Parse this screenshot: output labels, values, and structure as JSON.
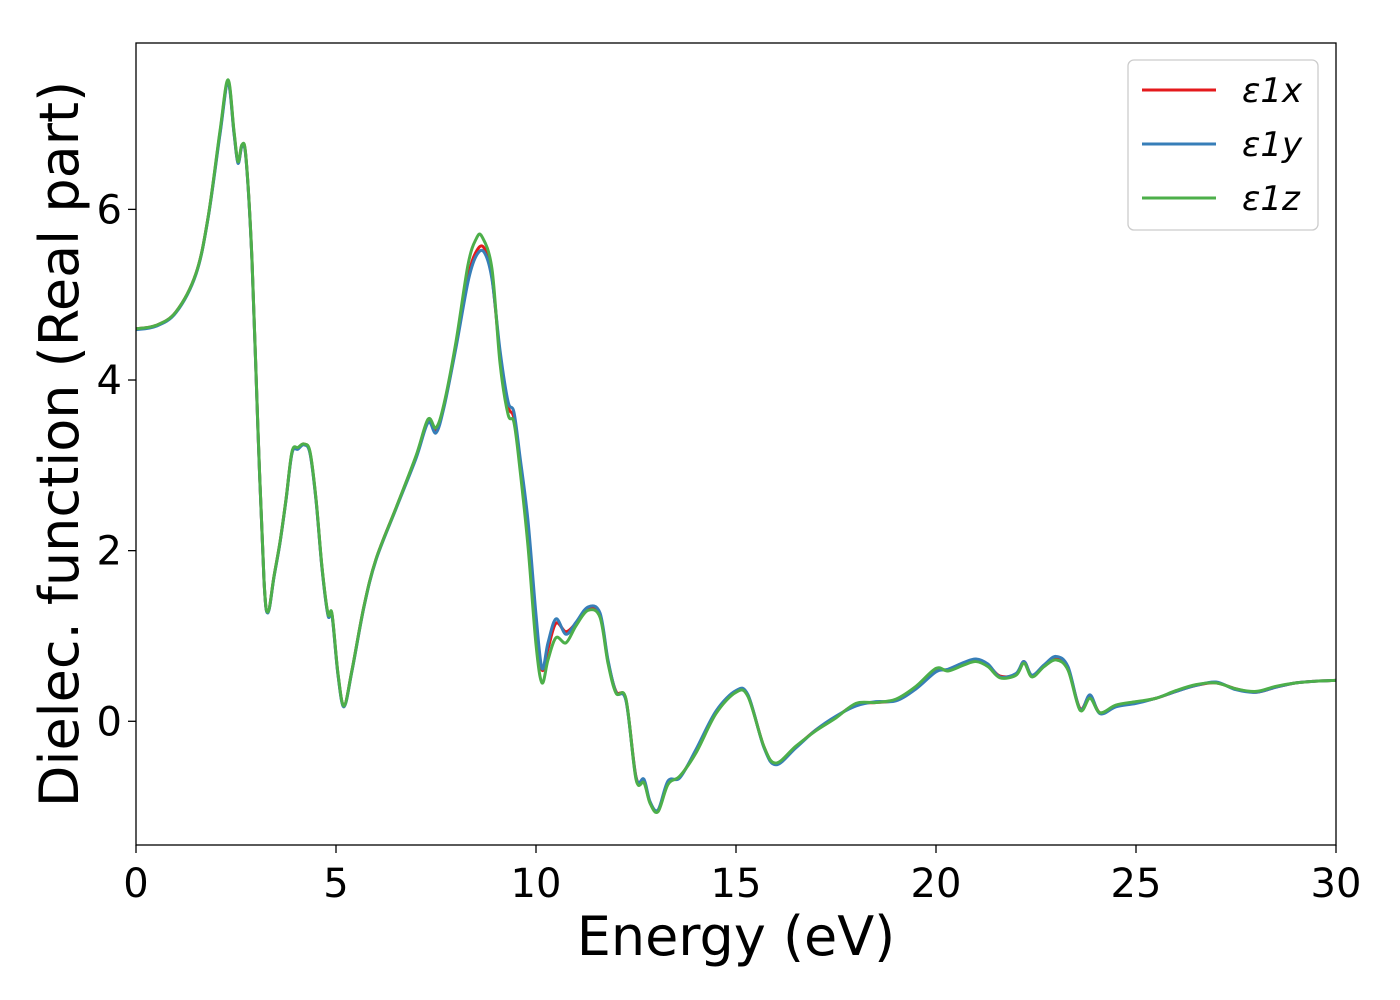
{
  "chart_data": {
    "type": "line",
    "title": "",
    "xlabel": "Energy (eV)",
    "ylabel": "Dielec. function (Real part)",
    "xlim": [
      0,
      30
    ],
    "ylim": [
      -1.45,
      7.95
    ],
    "xticks": [
      0,
      5,
      10,
      15,
      20,
      25,
      30
    ],
    "yticks": [
      0,
      2,
      4,
      6
    ],
    "grid": false,
    "legend_position": "top-right",
    "series": [
      {
        "name": "ε1x",
        "color": "#e41a1c",
        "points": [
          [
            0,
            4.6
          ],
          [
            0.5,
            4.64
          ],
          [
            1.0,
            4.8
          ],
          [
            1.5,
            5.25
          ],
          [
            1.8,
            5.9
          ],
          [
            2.1,
            6.9
          ],
          [
            2.3,
            7.5
          ],
          [
            2.45,
            6.9
          ],
          [
            2.55,
            6.55
          ],
          [
            2.65,
            6.75
          ],
          [
            2.75,
            6.6
          ],
          [
            2.9,
            5.4
          ],
          [
            3.05,
            3.4
          ],
          [
            3.2,
            1.65
          ],
          [
            3.3,
            1.28
          ],
          [
            3.45,
            1.7
          ],
          [
            3.6,
            2.1
          ],
          [
            3.75,
            2.6
          ],
          [
            3.9,
            3.15
          ],
          [
            4.05,
            3.2
          ],
          [
            4.2,
            3.25
          ],
          [
            4.35,
            3.15
          ],
          [
            4.5,
            2.6
          ],
          [
            4.65,
            1.8
          ],
          [
            4.8,
            1.25
          ],
          [
            4.9,
            1.25
          ],
          [
            5.05,
            0.55
          ],
          [
            5.2,
            0.18
          ],
          [
            5.4,
            0.6
          ],
          [
            5.7,
            1.35
          ],
          [
            6.0,
            1.9
          ],
          [
            6.5,
            2.5
          ],
          [
            7.0,
            3.1
          ],
          [
            7.3,
            3.52
          ],
          [
            7.5,
            3.42
          ],
          [
            7.7,
            3.7
          ],
          [
            8.0,
            4.4
          ],
          [
            8.3,
            5.2
          ],
          [
            8.5,
            5.5
          ],
          [
            8.7,
            5.55
          ],
          [
            8.9,
            5.2
          ],
          [
            9.1,
            4.3
          ],
          [
            9.3,
            3.7
          ],
          [
            9.45,
            3.55
          ],
          [
            9.6,
            3.0
          ],
          [
            9.8,
            2.2
          ],
          [
            10.0,
            1.1
          ],
          [
            10.15,
            0.6
          ],
          [
            10.3,
            0.85
          ],
          [
            10.5,
            1.15
          ],
          [
            10.75,
            1.05
          ],
          [
            11.0,
            1.15
          ],
          [
            11.3,
            1.32
          ],
          [
            11.6,
            1.25
          ],
          [
            11.8,
            0.7
          ],
          [
            12.0,
            0.35
          ],
          [
            12.25,
            0.25
          ],
          [
            12.5,
            -0.65
          ],
          [
            12.7,
            -0.7
          ],
          [
            12.85,
            -0.95
          ],
          [
            13.05,
            -1.05
          ],
          [
            13.3,
            -0.72
          ],
          [
            13.6,
            -0.65
          ],
          [
            14.0,
            -0.35
          ],
          [
            14.5,
            0.1
          ],
          [
            15.0,
            0.35
          ],
          [
            15.3,
            0.3
          ],
          [
            15.7,
            -0.3
          ],
          [
            16.0,
            -0.5
          ],
          [
            16.5,
            -0.3
          ],
          [
            17.0,
            -0.1
          ],
          [
            17.5,
            0.05
          ],
          [
            18.0,
            0.2
          ],
          [
            18.5,
            0.22
          ],
          [
            19.0,
            0.25
          ],
          [
            19.5,
            0.4
          ],
          [
            20.0,
            0.6
          ],
          [
            20.3,
            0.6
          ],
          [
            20.7,
            0.68
          ],
          [
            21.0,
            0.72
          ],
          [
            21.3,
            0.66
          ],
          [
            21.6,
            0.53
          ],
          [
            22.0,
            0.55
          ],
          [
            22.2,
            0.7
          ],
          [
            22.4,
            0.53
          ],
          [
            22.7,
            0.65
          ],
          [
            23.0,
            0.75
          ],
          [
            23.3,
            0.62
          ],
          [
            23.6,
            0.15
          ],
          [
            23.85,
            0.3
          ],
          [
            24.1,
            0.1
          ],
          [
            24.5,
            0.18
          ],
          [
            25.0,
            0.22
          ],
          [
            25.5,
            0.27
          ],
          [
            26.0,
            0.35
          ],
          [
            26.5,
            0.42
          ],
          [
            27.0,
            0.45
          ],
          [
            27.5,
            0.38
          ],
          [
            28.0,
            0.34
          ],
          [
            28.5,
            0.4
          ],
          [
            29.0,
            0.45
          ],
          [
            29.5,
            0.47
          ],
          [
            30.0,
            0.48
          ]
        ]
      },
      {
        "name": "ε1y",
        "color": "#377eb8",
        "points": [
          [
            0,
            4.59
          ],
          [
            0.5,
            4.63
          ],
          [
            1.0,
            4.79
          ],
          [
            1.5,
            5.24
          ],
          [
            1.8,
            5.89
          ],
          [
            2.1,
            6.88
          ],
          [
            2.3,
            7.48
          ],
          [
            2.45,
            6.89
          ],
          [
            2.55,
            6.54
          ],
          [
            2.65,
            6.74
          ],
          [
            2.75,
            6.59
          ],
          [
            2.9,
            5.39
          ],
          [
            3.05,
            3.39
          ],
          [
            3.2,
            1.65
          ],
          [
            3.3,
            1.27
          ],
          [
            3.45,
            1.69
          ],
          [
            3.6,
            2.09
          ],
          [
            3.75,
            2.59
          ],
          [
            3.9,
            3.14
          ],
          [
            4.05,
            3.19
          ],
          [
            4.2,
            3.24
          ],
          [
            4.35,
            3.14
          ],
          [
            4.5,
            2.59
          ],
          [
            4.65,
            1.79
          ],
          [
            4.8,
            1.24
          ],
          [
            4.9,
            1.24
          ],
          [
            5.05,
            0.54
          ],
          [
            5.2,
            0.17
          ],
          [
            5.4,
            0.59
          ],
          [
            5.7,
            1.34
          ],
          [
            6.0,
            1.89
          ],
          [
            6.5,
            2.49
          ],
          [
            7.0,
            3.08
          ],
          [
            7.3,
            3.5
          ],
          [
            7.5,
            3.38
          ],
          [
            7.7,
            3.68
          ],
          [
            8.0,
            4.38
          ],
          [
            8.3,
            5.15
          ],
          [
            8.5,
            5.45
          ],
          [
            8.7,
            5.5
          ],
          [
            8.9,
            5.18
          ],
          [
            9.1,
            4.35
          ],
          [
            9.3,
            3.75
          ],
          [
            9.45,
            3.62
          ],
          [
            9.6,
            3.1
          ],
          [
            9.8,
            2.35
          ],
          [
            10.0,
            1.25
          ],
          [
            10.15,
            0.62
          ],
          [
            10.3,
            0.92
          ],
          [
            10.5,
            1.2
          ],
          [
            10.75,
            1.02
          ],
          [
            11.0,
            1.16
          ],
          [
            11.3,
            1.34
          ],
          [
            11.6,
            1.27
          ],
          [
            11.8,
            0.72
          ],
          [
            12.0,
            0.34
          ],
          [
            12.25,
            0.24
          ],
          [
            12.5,
            -0.66
          ],
          [
            12.7,
            -0.68
          ],
          [
            12.85,
            -0.94
          ],
          [
            13.05,
            -1.04
          ],
          [
            13.3,
            -0.7
          ],
          [
            13.6,
            -0.66
          ],
          [
            14.0,
            -0.33
          ],
          [
            14.5,
            0.12
          ],
          [
            15.0,
            0.36
          ],
          [
            15.3,
            0.31
          ],
          [
            15.7,
            -0.31
          ],
          [
            16.0,
            -0.51
          ],
          [
            16.5,
            -0.31
          ],
          [
            17.0,
            -0.1
          ],
          [
            17.5,
            0.06
          ],
          [
            18.0,
            0.18
          ],
          [
            18.5,
            0.23
          ],
          [
            19.0,
            0.24
          ],
          [
            19.5,
            0.38
          ],
          [
            20.0,
            0.58
          ],
          [
            20.3,
            0.61
          ],
          [
            20.7,
            0.69
          ],
          [
            21.0,
            0.73
          ],
          [
            21.3,
            0.67
          ],
          [
            21.6,
            0.52
          ],
          [
            22.0,
            0.56
          ],
          [
            22.2,
            0.7
          ],
          [
            22.4,
            0.54
          ],
          [
            22.7,
            0.66
          ],
          [
            23.0,
            0.76
          ],
          [
            23.3,
            0.64
          ],
          [
            23.6,
            0.14
          ],
          [
            23.85,
            0.31
          ],
          [
            24.1,
            0.09
          ],
          [
            24.5,
            0.17
          ],
          [
            25.0,
            0.21
          ],
          [
            25.5,
            0.27
          ],
          [
            26.0,
            0.35
          ],
          [
            26.5,
            0.42
          ],
          [
            27.0,
            0.46
          ],
          [
            27.5,
            0.37
          ],
          [
            28.0,
            0.34
          ],
          [
            28.5,
            0.4
          ],
          [
            29.0,
            0.45
          ],
          [
            29.5,
            0.47
          ],
          [
            30.0,
            0.48
          ]
        ]
      },
      {
        "name": "ε1z",
        "color": "#4daf4a",
        "points": [
          [
            0,
            4.6
          ],
          [
            0.5,
            4.64
          ],
          [
            1.0,
            4.8
          ],
          [
            1.5,
            5.25
          ],
          [
            1.8,
            5.9
          ],
          [
            2.1,
            6.92
          ],
          [
            2.3,
            7.52
          ],
          [
            2.45,
            6.92
          ],
          [
            2.55,
            6.56
          ],
          [
            2.65,
            6.76
          ],
          [
            2.75,
            6.61
          ],
          [
            2.9,
            5.41
          ],
          [
            3.05,
            3.41
          ],
          [
            3.2,
            1.66
          ],
          [
            3.3,
            1.28
          ],
          [
            3.45,
            1.7
          ],
          [
            3.6,
            2.1
          ],
          [
            3.75,
            2.6
          ],
          [
            3.9,
            3.16
          ],
          [
            4.05,
            3.21
          ],
          [
            4.2,
            3.25
          ],
          [
            4.35,
            3.16
          ],
          [
            4.5,
            2.61
          ],
          [
            4.65,
            1.81
          ],
          [
            4.8,
            1.26
          ],
          [
            4.9,
            1.26
          ],
          [
            5.05,
            0.56
          ],
          [
            5.2,
            0.18
          ],
          [
            5.4,
            0.6
          ],
          [
            5.7,
            1.35
          ],
          [
            6.0,
            1.9
          ],
          [
            6.5,
            2.5
          ],
          [
            7.0,
            3.11
          ],
          [
            7.3,
            3.54
          ],
          [
            7.5,
            3.44
          ],
          [
            7.7,
            3.72
          ],
          [
            8.0,
            4.45
          ],
          [
            8.3,
            5.35
          ],
          [
            8.5,
            5.65
          ],
          [
            8.65,
            5.68
          ],
          [
            8.9,
            5.3
          ],
          [
            9.1,
            4.2
          ],
          [
            9.3,
            3.6
          ],
          [
            9.45,
            3.5
          ],
          [
            9.6,
            2.95
          ],
          [
            9.8,
            2.05
          ],
          [
            10.0,
            0.9
          ],
          [
            10.15,
            0.45
          ],
          [
            10.3,
            0.72
          ],
          [
            10.5,
            0.98
          ],
          [
            10.75,
            0.92
          ],
          [
            11.0,
            1.12
          ],
          [
            11.3,
            1.3
          ],
          [
            11.6,
            1.22
          ],
          [
            11.8,
            0.68
          ],
          [
            12.0,
            0.33
          ],
          [
            12.25,
            0.26
          ],
          [
            12.5,
            -0.68
          ],
          [
            12.7,
            -0.72
          ],
          [
            12.85,
            -0.96
          ],
          [
            13.05,
            -1.06
          ],
          [
            13.3,
            -0.74
          ],
          [
            13.6,
            -0.64
          ],
          [
            14.0,
            -0.37
          ],
          [
            14.5,
            0.09
          ],
          [
            15.0,
            0.34
          ],
          [
            15.3,
            0.29
          ],
          [
            15.7,
            -0.3
          ],
          [
            16.0,
            -0.49
          ],
          [
            16.5,
            -0.29
          ],
          [
            17.0,
            -0.11
          ],
          [
            17.5,
            0.04
          ],
          [
            18.0,
            0.21
          ],
          [
            18.5,
            0.22
          ],
          [
            19.0,
            0.26
          ],
          [
            19.5,
            0.41
          ],
          [
            20.0,
            0.62
          ],
          [
            20.3,
            0.59
          ],
          [
            20.7,
            0.66
          ],
          [
            21.0,
            0.7
          ],
          [
            21.3,
            0.64
          ],
          [
            21.6,
            0.51
          ],
          [
            22.0,
            0.54
          ],
          [
            22.2,
            0.68
          ],
          [
            22.4,
            0.52
          ],
          [
            22.7,
            0.64
          ],
          [
            23.0,
            0.72
          ],
          [
            23.3,
            0.6
          ],
          [
            23.6,
            0.13
          ],
          [
            23.85,
            0.27
          ],
          [
            24.1,
            0.1
          ],
          [
            24.5,
            0.19
          ],
          [
            25.0,
            0.23
          ],
          [
            25.5,
            0.27
          ],
          [
            26.0,
            0.36
          ],
          [
            26.5,
            0.43
          ],
          [
            27.0,
            0.45
          ],
          [
            27.5,
            0.38
          ],
          [
            28.0,
            0.35
          ],
          [
            28.5,
            0.41
          ],
          [
            29.0,
            0.45
          ],
          [
            29.5,
            0.47
          ],
          [
            30.0,
            0.48
          ]
        ]
      }
    ]
  }
}
